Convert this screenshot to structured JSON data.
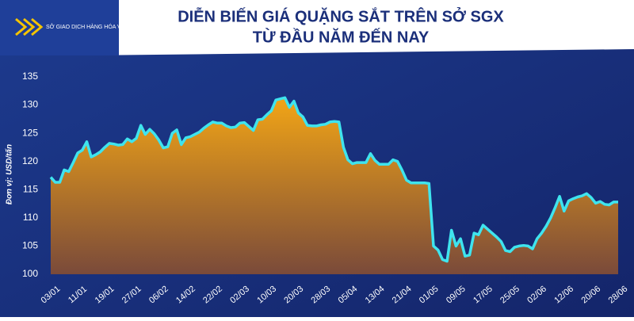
{
  "logo_text": "SỞ GIAO DỊCH HÀNG HÓA VIỆT NAM",
  "chart_data": {
    "type": "area",
    "title": "DIỄN BIẾN GIÁ QUẶNG SẮT TRÊN SỞ SGX",
    "subtitle": "TỪ ĐẦU NĂM ĐẾN NAY",
    "y_label": "Đơn vị: USD/tấn",
    "categories": [
      "03/01",
      null,
      null,
      null,
      null,
      null,
      "11/01",
      null,
      null,
      null,
      null,
      null,
      "19/01",
      null,
      null,
      null,
      null,
      null,
      "27/01",
      null,
      null,
      null,
      null,
      null,
      "06/02",
      null,
      null,
      null,
      null,
      null,
      "14/02",
      null,
      null,
      null,
      null,
      null,
      "22/02",
      null,
      null,
      null,
      null,
      null,
      "02/03",
      null,
      null,
      null,
      null,
      null,
      "10/03",
      null,
      null,
      null,
      null,
      null,
      "20/03",
      null,
      null,
      null,
      null,
      null,
      "28/03",
      null,
      null,
      null,
      null,
      null,
      "05/04",
      null,
      null,
      null,
      null,
      null,
      "13/04",
      null,
      null,
      null,
      null,
      null,
      "21/04",
      null,
      null,
      null,
      null,
      null,
      "01/05",
      null,
      null,
      null,
      null,
      null,
      "09/05",
      null,
      null,
      null,
      null,
      null,
      "17/05",
      null,
      null,
      null,
      null,
      null,
      "25/05",
      null,
      null,
      null,
      null,
      null,
      "02/06",
      null,
      null,
      null,
      null,
      null,
      "12/06",
      null,
      null,
      null,
      null,
      null,
      "20/06",
      null,
      null,
      null,
      null,
      null,
      "28/06"
    ],
    "values": [
      117.2,
      116.3,
      116.3,
      118.5,
      118.2,
      119.8,
      121.5,
      122,
      123.5,
      120.8,
      121.2,
      121.7,
      122.5,
      123.2,
      123.1,
      122.9,
      123,
      124,
      123.5,
      124.1,
      126.4,
      124.8,
      125.7,
      124.9,
      123.8,
      122.4,
      122.6,
      125,
      125.6,
      123,
      124.2,
      124.4,
      124.8,
      125.2,
      125.9,
      126.5,
      127,
      126.8,
      126.8,
      126.3,
      126,
      126.1,
      126.8,
      126.9,
      126.2,
      125.5,
      127.4,
      127.5,
      128.3,
      129,
      130.9,
      131.1,
      131.3,
      129.6,
      130.7,
      128.6,
      127.9,
      126.4,
      126.3,
      126.3,
      126.5,
      126.6,
      127,
      127.1,
      127,
      122.5,
      120.3,
      119.6,
      119.8,
      119.8,
      119.8,
      121.4,
      120.2,
      119.5,
      119.5,
      119.5,
      120.3,
      120,
      118.5,
      116.7,
      116.2,
      116.2,
      116.2,
      116.2,
      116.1,
      105,
      104.3,
      102.6,
      102.3,
      107.8,
      105,
      106.3,
      103.2,
      103.4,
      107.3,
      107,
      108.7,
      108,
      107.3,
      106.6,
      105.8,
      104.2,
      104,
      104.8,
      105,
      105.1,
      105,
      104.5,
      106.3,
      107.3,
      108.5,
      110,
      111.8,
      113.8,
      111.2,
      113,
      113.4,
      113.7,
      113.9,
      114.3,
      113.6,
      112.6,
      112.9,
      112.4,
      112.3,
      112.8,
      112.8
    ],
    "line_color": "#3fe4ee",
    "fill_color": "#f2a516",
    "ylim": [
      100,
      135
    ],
    "yticks": [
      100,
      105,
      110,
      115,
      120,
      125,
      130,
      135
    ]
  }
}
